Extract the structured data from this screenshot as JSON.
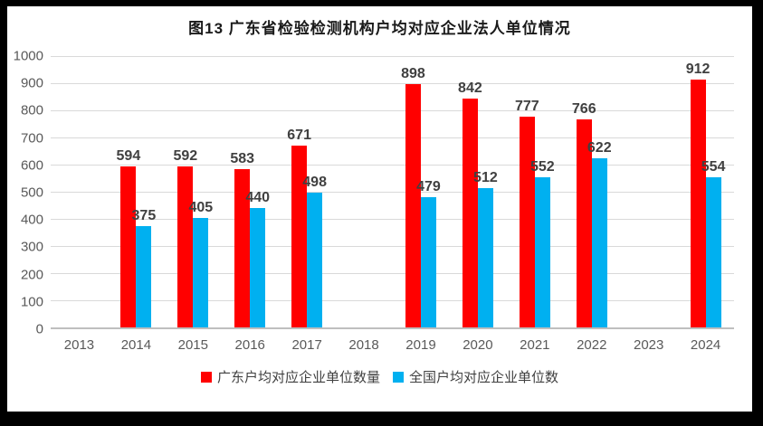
{
  "chart_data": {
    "type": "bar",
    "title": "图13 广东省检验检测机构户均对应企业法人单位情况",
    "categories": [
      "2013",
      "2014",
      "2015",
      "2016",
      "2017",
      "2018",
      "2019",
      "2020",
      "2021",
      "2022",
      "2023",
      "2024"
    ],
    "series": [
      {
        "name": "广东户均对应企业单位数量",
        "color": "#FF0000",
        "values": [
          null,
          594,
          592,
          583,
          671,
          null,
          898,
          842,
          777,
          766,
          null,
          912
        ]
      },
      {
        "name": "全国户均对应企业单位数",
        "color": "#00B0F0",
        "values": [
          null,
          375,
          405,
          440,
          498,
          null,
          479,
          512,
          552,
          622,
          null,
          554
        ]
      }
    ],
    "xlabel": "",
    "ylabel": "",
    "ylim": [
      0,
      1000
    ],
    "y_ticks": [
      0,
      100,
      200,
      300,
      400,
      500,
      600,
      700,
      800,
      900,
      1000
    ],
    "grid": true,
    "legend_position": "bottom"
  },
  "colors": {
    "series_guangdong": "#FF0000",
    "series_national": "#00B0F0",
    "gridline": "#D9D9D9",
    "axis_line": "#BFBFBF",
    "tick_text": "#595959",
    "data_label_text": "#404040",
    "title_text": "#1a1a1a",
    "frame": "#000000"
  }
}
